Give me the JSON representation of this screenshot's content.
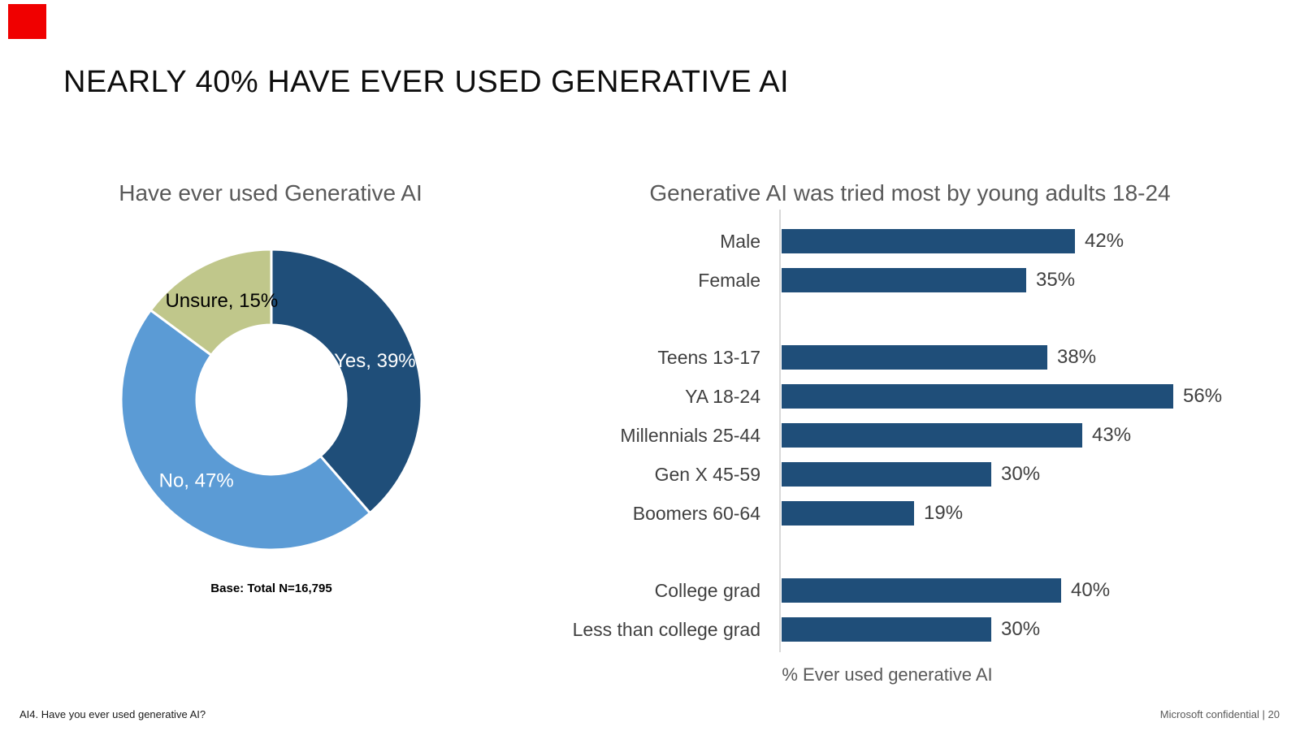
{
  "slide": {
    "title": "NEARLY 40% HAVE EVER USED GENERATIVE AI",
    "accent_bar_color": "#f00000",
    "footer_left": "AI4. Have you ever used generative AI?",
    "footer_right": "Microsoft confidential",
    "footer_separator": "|",
    "page_number": "20"
  },
  "chart_data": [
    {
      "type": "pie",
      "subtype": "donut",
      "title": "Have ever used Generative AI",
      "labels": [
        "Yes",
        "No",
        "Unsure"
      ],
      "values": [
        39,
        47,
        15
      ],
      "slice_labels": [
        "Yes, 39%",
        "No, 47%",
        "Unsure, 15%"
      ],
      "colors": [
        "#1F4E79",
        "#5B9BD5",
        "#C0C78B"
      ],
      "label_text_colors": [
        "#FFFFFF",
        "#FFFFFF",
        "#000000"
      ],
      "start_angle": "top",
      "direction": "clockwise",
      "note": "Base: Total N=16,795"
    },
    {
      "type": "bar",
      "orientation": "horizontal",
      "title": "Generative AI was tried most by young adults 18-24",
      "xlabel": "% Ever used generative AI",
      "categories": [
        "Male",
        "Female",
        "Teens 13-17",
        "YA 18-24",
        "Millennials 25-44",
        "Gen X 45-59",
        "Boomers 60-64",
        "College grad",
        "Less than college grad"
      ],
      "values": [
        42,
        35,
        38,
        56,
        43,
        30,
        19,
        40,
        30
      ],
      "value_labels": [
        "42%",
        "35%",
        "38%",
        "56%",
        "43%",
        "30%",
        "19%",
        "40%",
        "30%"
      ],
      "bar_color": "#1F4E79",
      "axis_line_color": "#D9D9D9",
      "group_breaks_after": [
        1,
        6
      ],
      "xlim": [
        0,
        60
      ],
      "grid": false,
      "legend": false
    }
  ]
}
